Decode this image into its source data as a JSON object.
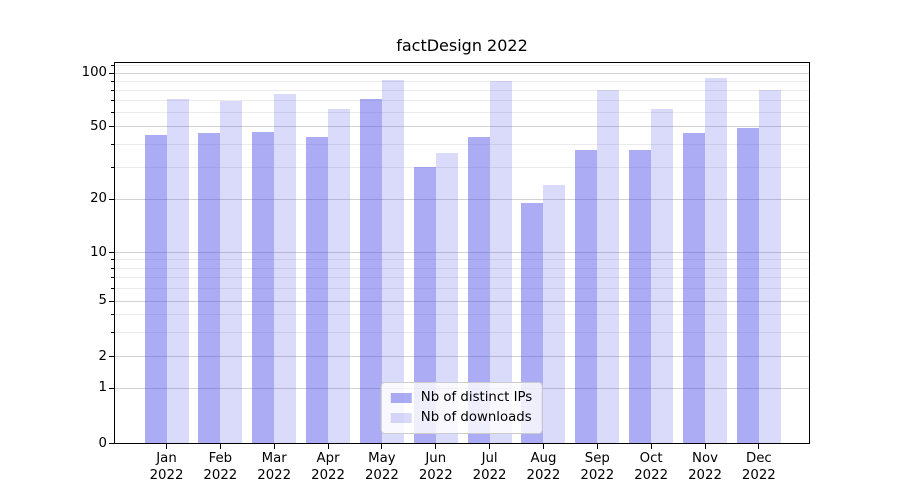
{
  "chart_data": {
    "type": "bar",
    "title": "factDesign 2022",
    "categories": [
      "Jan 2022",
      "Feb 2022",
      "Mar 2022",
      "Apr 2022",
      "May 2022",
      "Jun 2022",
      "Jul 2022",
      "Aug 2022",
      "Sep 2022",
      "Oct 2022",
      "Nov 2022",
      "Dec 2022"
    ],
    "series": [
      {
        "name": "Nb of distinct IPs",
        "color": "rgba(70,70,230,0.45)",
        "values": [
          45,
          46,
          47,
          44,
          72,
          30,
          44,
          19,
          37,
          37,
          46,
          49
        ]
      },
      {
        "name": "Nb of downloads",
        "color": "rgba(70,70,230,0.2)",
        "values": [
          72,
          70,
          76,
          63,
          92,
          36,
          91,
          24,
          81,
          63,
          94,
          80
        ]
      }
    ],
    "y_axis": {
      "scale": "symlog",
      "ticks": [
        0,
        1,
        2,
        5,
        10,
        20,
        50,
        100
      ],
      "minor_ticks": [
        3,
        4,
        6,
        7,
        8,
        9,
        30,
        40,
        60,
        70,
        80,
        90,
        110
      ],
      "ylim": [
        0,
        115
      ]
    },
    "legend_position": "lower center",
    "grid": true,
    "colors": {
      "major_grid": "#d2d2d2",
      "minor_grid": "#ebebeb",
      "spine": "#000000",
      "background": "#ffffff"
    }
  }
}
